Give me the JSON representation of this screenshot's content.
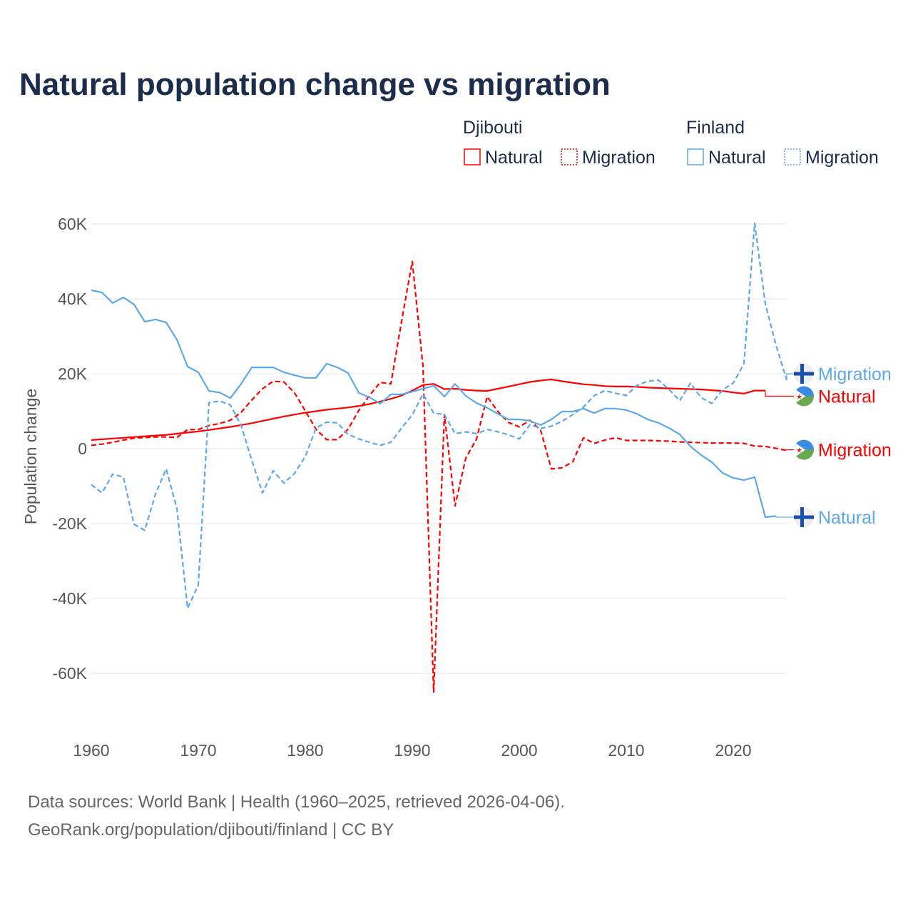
{
  "chart_data": {
    "type": "line",
    "title": "Natural population change vs migration",
    "xlabel": "",
    "ylabel": "Population change",
    "xlim": [
      1960,
      2025
    ],
    "ylim": [
      -65000,
      62000
    ],
    "x_ticks": [
      1960,
      1970,
      1980,
      1990,
      2000,
      2010,
      2020
    ],
    "x_tick_labels": [
      "1960",
      "1970",
      "1980",
      "1990",
      "2000",
      "2010",
      "2020"
    ],
    "y_ticks": [
      60000,
      40000,
      20000,
      0,
      -20000,
      -40000,
      -60000
    ],
    "y_tick_labels": [
      "60K",
      "40K",
      "20K",
      "0",
      "-20K",
      "-40K",
      "-60K"
    ],
    "grid": true,
    "legend_placement": "top-right",
    "legend_groups": [
      {
        "country": "Djibouti",
        "items": [
          "Natural",
          "Migration"
        ]
      },
      {
        "country": "Finland",
        "items": [
          "Natural",
          "Migration"
        ]
      }
    ],
    "series": [
      {
        "name": "Djibouti Natural",
        "country": "Djibouti",
        "kind": "Natural",
        "end_label": "Natural",
        "color": "#ff0000",
        "dash": false,
        "start_year": 1960,
        "label_value": 14000,
        "values": [
          2300,
          2500,
          2700,
          2900,
          3100,
          3300,
          3500,
          3700,
          4000,
          4300,
          4600,
          5000,
          5400,
          5800,
          6300,
          6800,
          7400,
          8000,
          8600,
          9100,
          9600,
          10000,
          10400,
          10700,
          11000,
          11400,
          11900,
          12600,
          13300,
          14200,
          15500,
          17000,
          17300,
          15900,
          16000,
          15700,
          15500,
          15400,
          16000,
          16600,
          17200,
          17800,
          18200,
          18500,
          18000,
          17600,
          17200,
          17000,
          16700,
          16600,
          16600,
          16500,
          16300,
          16200,
          16100,
          16000,
          15900,
          15800,
          15600,
          15400,
          15000,
          14700,
          15500,
          15500
        ]
      },
      {
        "name": "Djibouti Migration",
        "country": "Djibouti",
        "kind": "Migration",
        "end_label": "Migration",
        "color": "#ff0000",
        "dash": true,
        "start_year": 1960,
        "label_value": -300,
        "values": [
          900,
          1200,
          1700,
          2300,
          2800,
          3000,
          3100,
          3100,
          3000,
          5100,
          5100,
          6200,
          6700,
          7600,
          9700,
          13000,
          16000,
          18000,
          17800,
          14900,
          10100,
          5200,
          2400,
          2400,
          5200,
          10200,
          14200,
          17700,
          17300,
          34000,
          50000,
          22000,
          -65000,
          9100,
          -15300,
          -2500,
          2500,
          13900,
          9900,
          7000,
          5800,
          7600,
          4900,
          -5400,
          -5100,
          -3500,
          2900,
          1400,
          2300,
          2900,
          2200,
          2200,
          2200,
          2100,
          2000,
          1800,
          1700,
          1600,
          1500,
          1500,
          1500,
          1400,
          700,
          600,
          100,
          -500
        ]
      },
      {
        "name": "Finland Natural",
        "country": "Finland",
        "kind": "Natural",
        "end_label": "Natural",
        "color": "#5ca8ea",
        "dash": false,
        "start_year": 1960,
        "label_value": -18300,
        "values": [
          42300,
          41700,
          38900,
          40400,
          38500,
          33900,
          34500,
          33700,
          29100,
          21900,
          20400,
          15400,
          15000,
          13500,
          17300,
          21700,
          21700,
          21700,
          20400,
          19600,
          18900,
          18900,
          22700,
          21700,
          20200,
          14900,
          13700,
          12000,
          14500,
          14500,
          15200,
          16000,
          16800,
          13900,
          17300,
          14100,
          12200,
          10900,
          9300,
          7800,
          7800,
          7400,
          6300,
          7800,
          9900,
          9900,
          10700,
          9500,
          10700,
          10700,
          10300,
          9300,
          7800,
          6900,
          5500,
          3800,
          600,
          -1700,
          -3600,
          -6500,
          -7800,
          -8400,
          -7600,
          -18300,
          -18000
        ]
      },
      {
        "name": "Finland Migration",
        "country": "Finland",
        "kind": "Migration",
        "end_label": "Migration",
        "color": "#5ca8ea",
        "dash": true,
        "start_year": 1960,
        "label_value": 20000,
        "values": [
          -9600,
          -11800,
          -6800,
          -7600,
          -20200,
          -21800,
          -12100,
          -5400,
          -16000,
          -42600,
          -36400,
          12300,
          12700,
          11700,
          6200,
          -3100,
          -11800,
          -5900,
          -9200,
          -6600,
          -2100,
          5500,
          7100,
          6900,
          3800,
          2600,
          1700,
          900,
          1700,
          5500,
          9000,
          14600,
          9500,
          9100,
          4000,
          4500,
          4000,
          5100,
          4500,
          3700,
          2600,
          6400,
          5400,
          6000,
          7300,
          9100,
          11100,
          14200,
          15500,
          14800,
          14200,
          16900,
          18000,
          18300,
          15800,
          12800,
          17500,
          13600,
          12100,
          15700,
          17500,
          22700,
          60200,
          38600,
          27600,
          18300
        ]
      }
    ]
  },
  "footer": {
    "line1": "Data sources: World Bank | Health (1960–2025, retrieved 2026-04-06).",
    "line2": "GeoRank.org/population/djibouti/finland | CC BY"
  }
}
